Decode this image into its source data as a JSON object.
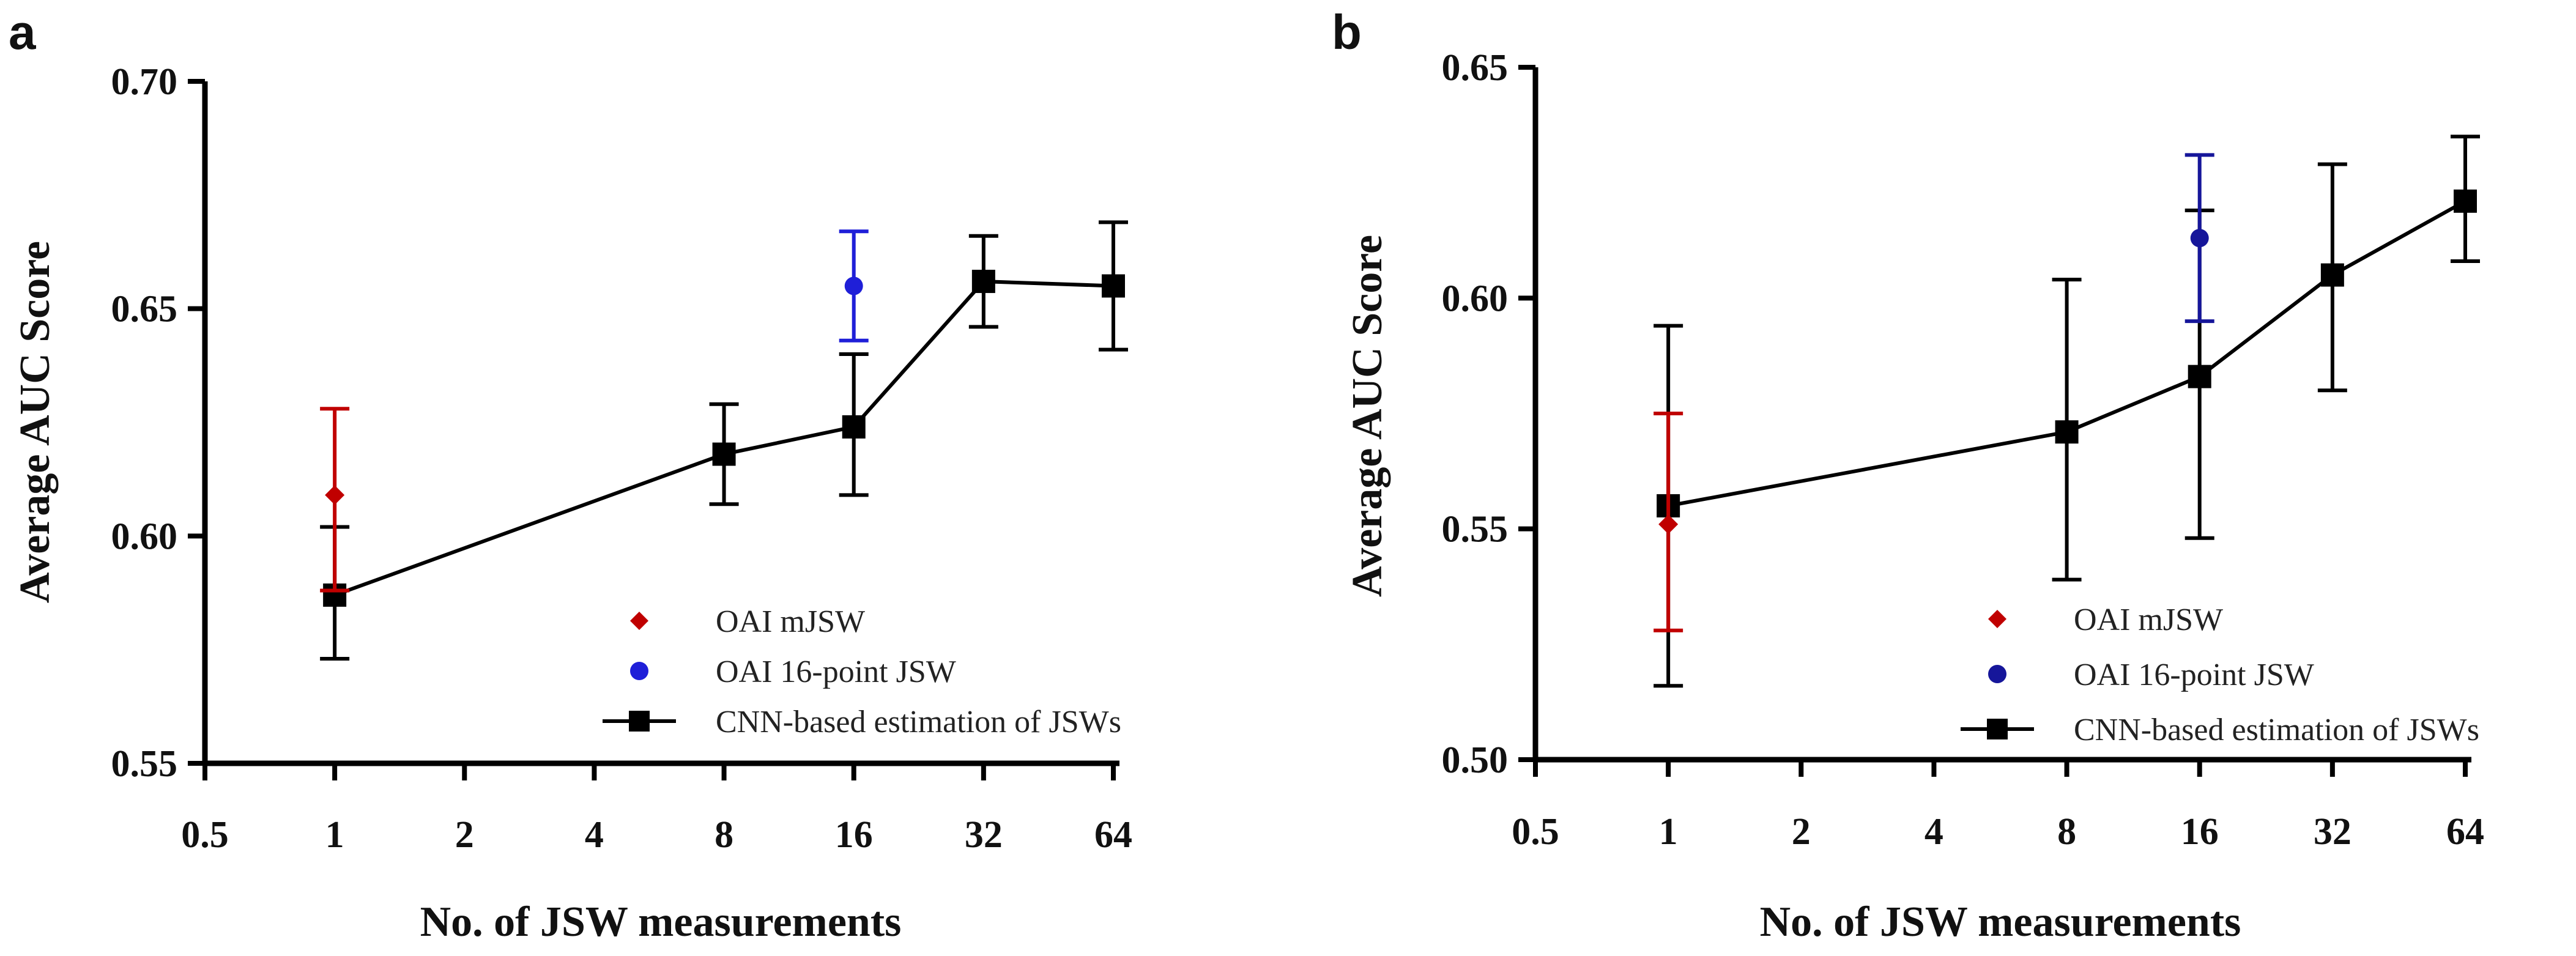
{
  "chart_data": [
    {
      "panel_label": "a",
      "type": "line",
      "xlabel": "No. of JSW measurements",
      "ylabel": "Average AUC Score",
      "x_scale": "log2",
      "x_ticks": [
        0.5,
        1,
        2,
        4,
        8,
        16,
        32,
        64
      ],
      "x_tick_labels": [
        "0.5",
        "1",
        "2",
        "4",
        "8",
        "16",
        "32",
        "64"
      ],
      "ylim": [
        0.55,
        0.7
      ],
      "y_ticks": [
        0.55,
        0.6,
        0.65,
        0.7
      ],
      "y_tick_labels": [
        "0.55",
        "0.60",
        "0.65",
        "0.70"
      ],
      "grid": false,
      "legend_position": "bottom-right",
      "series": [
        {
          "name": "OAI mJSW",
          "marker": "diamond",
          "color": "#c00000",
          "line": false,
          "points": [
            {
              "x": 1,
              "y": 0.609,
              "lo": 0.588,
              "hi": 0.628
            }
          ]
        },
        {
          "name": "OAI 16-point JSW",
          "marker": "circle",
          "color": "#1f1fd8",
          "line": false,
          "points": [
            {
              "x": 16,
              "y": 0.655,
              "lo": 0.643,
              "hi": 0.667
            }
          ]
        },
        {
          "name": "CNN-based estimation of JSWs",
          "marker": "square",
          "color": "#000000",
          "line": true,
          "points": [
            {
              "x": 1,
              "y": 0.587,
              "lo": 0.573,
              "hi": 0.602
            },
            {
              "x": 8,
              "y": 0.618,
              "lo": 0.607,
              "hi": 0.629
            },
            {
              "x": 16,
              "y": 0.624,
              "lo": 0.609,
              "hi": 0.64
            },
            {
              "x": 32,
              "y": 0.656,
              "lo": 0.646,
              "hi": 0.666
            },
            {
              "x": 64,
              "y": 0.655,
              "lo": 0.641,
              "hi": 0.669
            }
          ]
        }
      ]
    },
    {
      "panel_label": "b",
      "type": "line",
      "xlabel": "No. of JSW measurements",
      "ylabel": "Average AUC Score",
      "x_scale": "log2",
      "x_ticks": [
        0.5,
        1,
        2,
        4,
        8,
        16,
        32,
        64
      ],
      "x_tick_labels": [
        "0.5",
        "1",
        "2",
        "4",
        "8",
        "16",
        "32",
        "64"
      ],
      "ylim": [
        0.5,
        0.65
      ],
      "y_ticks": [
        0.5,
        0.55,
        0.6,
        0.65
      ],
      "y_tick_labels": [
        "0.50",
        "0.55",
        "0.60",
        "0.65"
      ],
      "grid": false,
      "legend_position": "bottom-right",
      "series": [
        {
          "name": "OAI mJSW",
          "marker": "diamond",
          "color": "#c00000",
          "line": false,
          "points": [
            {
              "x": 1,
              "y": 0.551,
              "lo": 0.528,
              "hi": 0.575
            }
          ]
        },
        {
          "name": "OAI 16-point JSW",
          "marker": "circle",
          "color": "#16169a",
          "line": false,
          "points": [
            {
              "x": 16,
              "y": 0.613,
              "lo": 0.595,
              "hi": 0.631
            }
          ]
        },
        {
          "name": "CNN-based estimation of JSWs",
          "marker": "square",
          "color": "#000000",
          "line": true,
          "points": [
            {
              "x": 1,
              "y": 0.555,
              "lo": 0.516,
              "hi": 0.594
            },
            {
              "x": 8,
              "y": 0.571,
              "lo": 0.539,
              "hi": 0.604
            },
            {
              "x": 16,
              "y": 0.583,
              "lo": 0.548,
              "hi": 0.619
            },
            {
              "x": 32,
              "y": 0.605,
              "lo": 0.58,
              "hi": 0.629
            },
            {
              "x": 64,
              "y": 0.621,
              "lo": 0.608,
              "hi": 0.635
            }
          ]
        }
      ]
    }
  ]
}
